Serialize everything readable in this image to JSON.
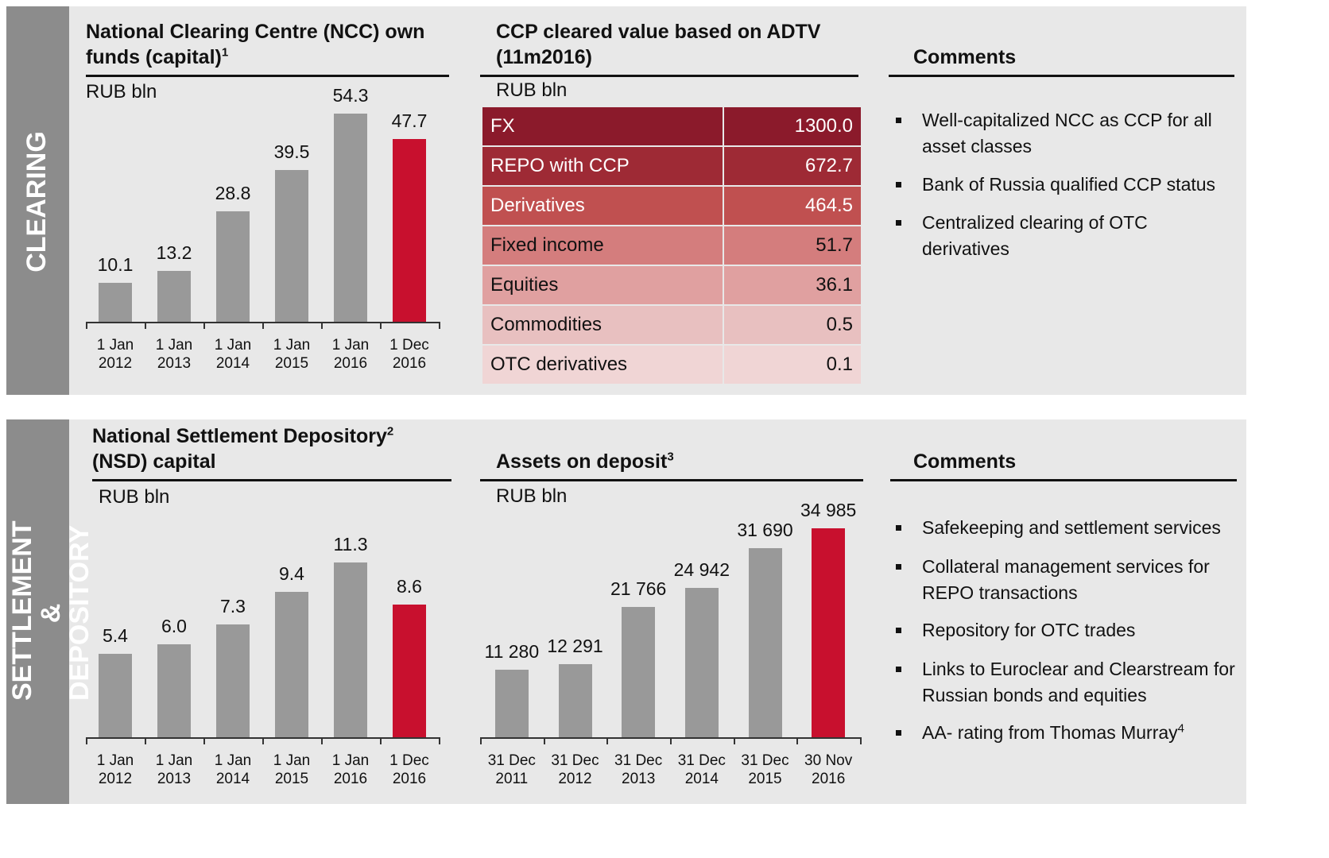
{
  "sections": [
    "CLEARING",
    "SETTLEMENT & DEPOSITORY"
  ],
  "chart_data": [
    {
      "type": "bar",
      "title": "National Clearing Centre (NCC) own funds (capital)",
      "title_note": "1",
      "unit": "RUB bln",
      "categories": [
        "1 Jan 2012",
        "1 Jan 2013",
        "1 Jan 2014",
        "1 Jan 2015",
        "1 Jan 2016",
        "1 Dec 2016"
      ],
      "values": [
        10.1,
        13.2,
        28.8,
        39.5,
        54.3,
        47.7
      ],
      "colors": [
        "#999999",
        "#999999",
        "#999999",
        "#999999",
        "#999999",
        "#c8102e"
      ]
    },
    {
      "type": "bar",
      "title": "National Settlement Depository",
      "title_note": "2",
      "title_line2": "(NSD) capital",
      "unit": "RUB bln",
      "categories": [
        "1 Jan 2012",
        "1 Jan 2013",
        "1 Jan 2014",
        "1 Jan 2015",
        "1 Jan 2016",
        "1 Dec 2016"
      ],
      "values": [
        5.4,
        6.0,
        7.3,
        9.4,
        11.3,
        8.6
      ],
      "value_labels": [
        "5.4",
        "6.0",
        "7.3",
        "9.4",
        "11.3",
        "8.6"
      ],
      "colors": [
        "#999999",
        "#999999",
        "#999999",
        "#999999",
        "#999999",
        "#c8102e"
      ]
    },
    {
      "type": "bar",
      "title": "Assets on deposit",
      "title_note": "3",
      "unit": "RUB bln",
      "categories": [
        "31 Dec 2011",
        "31 Dec 2012",
        "31 Dec 2013",
        "31 Dec 2014",
        "31 Dec 2015",
        "30 Nov 2016"
      ],
      "values": [
        11280,
        12291,
        21766,
        24942,
        31690,
        34985
      ],
      "value_labels": [
        "11 280",
        "12 291",
        "21 766",
        "24 942",
        "31 690",
        "34 985"
      ],
      "colors": [
        "#999999",
        "#999999",
        "#999999",
        "#999999",
        "#999999",
        "#c8102e"
      ]
    }
  ],
  "table": {
    "title": "CCP cleared value based on ADTV (11m2016)",
    "unit": "RUB bln",
    "rows": [
      [
        "FX",
        "1300.0"
      ],
      [
        "REPO with CCP",
        "672.7"
      ],
      [
        "Derivatives",
        "464.5"
      ],
      [
        "Fixed income",
        "51.7"
      ],
      [
        "Equities",
        "36.1"
      ],
      [
        "Commodities",
        "0.5"
      ],
      [
        "OTC derivatives",
        "0.1"
      ]
    ]
  },
  "comments": [
    {
      "title": "Comments",
      "items": [
        "Well-capitalized NCC as CCP for all asset classes",
        "Bank of Russia qualified CCP status",
        "Centralized clearing of OTC derivatives"
      ]
    },
    {
      "title": "Comments",
      "items": [
        "Safekeeping and settlement services",
        "Collateral management services for REPO transactions",
        "Repository for OTC trades",
        "Links to Euroclear and Clearstream for Russian bonds and equities",
        {
          "text": "AA- rating from Thomas Murray",
          "note": "4"
        }
      ]
    }
  ]
}
